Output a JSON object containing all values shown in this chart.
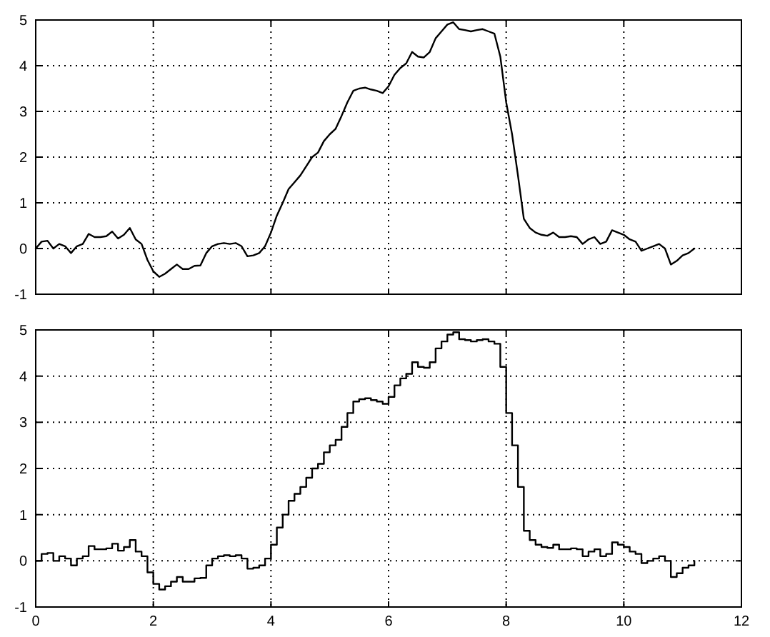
{
  "chart_data": [
    {
      "type": "line",
      "x": [
        0,
        0.1,
        0.2,
        0.3,
        0.4,
        0.5,
        0.6,
        0.7,
        0.8,
        0.9,
        1,
        1.1,
        1.2,
        1.3,
        1.4,
        1.5,
        1.6,
        1.7,
        1.8,
        1.9,
        2,
        2.1,
        2.2,
        2.3,
        2.4,
        2.5,
        2.6,
        2.7,
        2.8,
        2.9,
        3,
        3.1,
        3.2,
        3.3,
        3.4,
        3.5,
        3.6,
        3.7,
        3.8,
        3.9,
        4,
        4.1,
        4.2,
        4.3,
        4.4,
        4.5,
        4.6,
        4.7,
        4.8,
        4.9,
        5,
        5.1,
        5.2,
        5.3,
        5.4,
        5.5,
        5.6,
        5.7,
        5.8,
        5.9,
        6,
        6.1,
        6.2,
        6.3,
        6.4,
        6.5,
        6.6,
        6.7,
        6.8,
        6.9,
        7,
        7.1,
        7.2,
        7.3,
        7.4,
        7.5,
        7.6,
        7.7,
        7.8,
        7.9,
        8,
        8.1,
        8.2,
        8.3,
        8.4,
        8.5,
        8.6,
        8.7,
        8.8,
        8.9,
        9,
        9.1,
        9.2,
        9.3,
        9.4,
        9.5,
        9.6,
        9.7,
        9.8,
        9.9,
        10,
        10.1,
        10.2,
        10.3,
        10.4,
        10.5,
        10.6,
        10.7,
        10.8,
        10.9,
        11,
        11.1,
        11.2
      ],
      "series": [
        {
          "color": "#000000",
          "values": [
            0,
            0.15,
            0.17,
            0,
            0.1,
            0.05,
            -0.1,
            0.05,
            0.1,
            0.32,
            0.25,
            0.25,
            0.27,
            0.37,
            0.22,
            0.3,
            0.45,
            0.2,
            0.1,
            -0.25,
            -0.5,
            -0.62,
            -0.55,
            -0.45,
            -0.35,
            -0.45,
            -0.45,
            -0.38,
            -0.37,
            -0.1,
            0.05,
            0.1,
            0.12,
            0.1,
            0.12,
            0.05,
            -0.17,
            -0.15,
            -0.1,
            0.05,
            0.35,
            0.72,
            1,
            1.3,
            1.45,
            1.6,
            1.8,
            2,
            2.1,
            2.35,
            2.5,
            2.62,
            2.9,
            3.2,
            3.45,
            3.5,
            3.52,
            3.48,
            3.45,
            3.4,
            3.55,
            3.8,
            3.95,
            4.05,
            4.3,
            4.2,
            4.18,
            4.3,
            4.6,
            4.75,
            4.9,
            4.95,
            4.8,
            4.78,
            4.75,
            4.78,
            4.8,
            4.75,
            4.7,
            4.2,
            3.2,
            2.5,
            1.6,
            0.65,
            0.45,
            0.35,
            0.3,
            0.28,
            0.35,
            0.25,
            0.25,
            0.27,
            0.25,
            0.1,
            0.2,
            0.25,
            0.1,
            0.15,
            0.4,
            0.35,
            0.3,
            0.2,
            0.15,
            -0.05,
            0,
            0.05,
            0.1,
            0,
            -0.35,
            -0.27,
            -0.15,
            -0.1,
            0
          ]
        }
      ],
      "xlim": [
        0,
        12
      ],
      "xticks": [
        0,
        2,
        4,
        6,
        8,
        10,
        12
      ],
      "ylim": [
        -1,
        5
      ],
      "yticks": [
        -1,
        0,
        1,
        2,
        3,
        4,
        5
      ],
      "grid": true,
      "tick_labels": "y",
      "line_style": "solid"
    },
    {
      "type": "step",
      "x": [
        0,
        0.1,
        0.2,
        0.3,
        0.4,
        0.5,
        0.6,
        0.7,
        0.8,
        0.9,
        1,
        1.1,
        1.2,
        1.3,
        1.4,
        1.5,
        1.6,
        1.7,
        1.8,
        1.9,
        2,
        2.1,
        2.2,
        2.3,
        2.4,
        2.5,
        2.6,
        2.7,
        2.8,
        2.9,
        3,
        3.1,
        3.2,
        3.3,
        3.4,
        3.5,
        3.6,
        3.7,
        3.8,
        3.9,
        4,
        4.1,
        4.2,
        4.3,
        4.4,
        4.5,
        4.6,
        4.7,
        4.8,
        4.9,
        5,
        5.1,
        5.2,
        5.3,
        5.4,
        5.5,
        5.6,
        5.7,
        5.8,
        5.9,
        6,
        6.1,
        6.2,
        6.3,
        6.4,
        6.5,
        6.6,
        6.7,
        6.8,
        6.9,
        7,
        7.1,
        7.2,
        7.3,
        7.4,
        7.5,
        7.6,
        7.7,
        7.8,
        7.9,
        8,
        8.1,
        8.2,
        8.3,
        8.4,
        8.5,
        8.6,
        8.7,
        8.8,
        8.9,
        9,
        9.1,
        9.2,
        9.3,
        9.4,
        9.5,
        9.6,
        9.7,
        9.8,
        9.9,
        10,
        10.1,
        10.2,
        10.3,
        10.4,
        10.5,
        10.6,
        10.7,
        10.8,
        10.9,
        11,
        11.1,
        11.2
      ],
      "series": [
        {
          "color": "#000000",
          "values": [
            0,
            0.15,
            0.17,
            0,
            0.1,
            0.05,
            -0.1,
            0.05,
            0.1,
            0.32,
            0.25,
            0.25,
            0.27,
            0.37,
            0.22,
            0.3,
            0.45,
            0.2,
            0.1,
            -0.25,
            -0.5,
            -0.62,
            -0.55,
            -0.45,
            -0.35,
            -0.45,
            -0.45,
            -0.38,
            -0.37,
            -0.1,
            0.05,
            0.1,
            0.12,
            0.1,
            0.12,
            0.05,
            -0.17,
            -0.15,
            -0.1,
            0.05,
            0.35,
            0.72,
            1,
            1.3,
            1.45,
            1.6,
            1.8,
            2,
            2.1,
            2.35,
            2.5,
            2.62,
            2.9,
            3.2,
            3.45,
            3.5,
            3.52,
            3.48,
            3.45,
            3.4,
            3.55,
            3.8,
            3.95,
            4.05,
            4.3,
            4.2,
            4.18,
            4.3,
            4.6,
            4.75,
            4.9,
            4.95,
            4.8,
            4.78,
            4.75,
            4.78,
            4.8,
            4.75,
            4.7,
            4.2,
            3.2,
            2.5,
            1.6,
            0.65,
            0.45,
            0.35,
            0.3,
            0.28,
            0.35,
            0.25,
            0.25,
            0.27,
            0.25,
            0.1,
            0.2,
            0.25,
            0.1,
            0.15,
            0.4,
            0.35,
            0.3,
            0.2,
            0.15,
            -0.05,
            0,
            0.05,
            0.1,
            0,
            -0.35,
            -0.27,
            -0.15,
            -0.1,
            0
          ]
        }
      ],
      "xlim": [
        0,
        12
      ],
      "xticks": [
        0,
        2,
        4,
        6,
        8,
        10,
        12
      ],
      "ylim": [
        -1,
        5
      ],
      "yticks": [
        -1,
        0,
        1,
        2,
        3,
        4,
        5
      ],
      "grid": true,
      "line_style": "solid"
    }
  ]
}
